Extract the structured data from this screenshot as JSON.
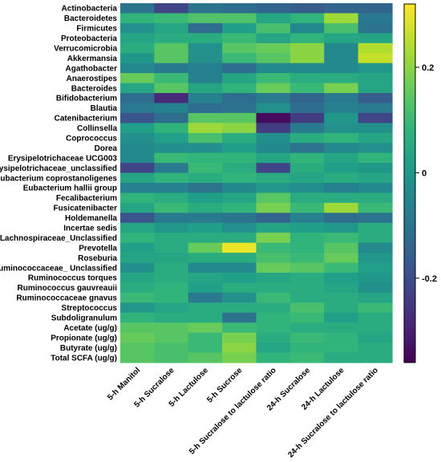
{
  "chart_data": {
    "type": "heatmap",
    "title": "",
    "xlabel": "",
    "ylabel": "",
    "columns": [
      "5-h Manitol",
      "5-h Sucralose",
      "5-h Lactulose",
      "5-h Sucrose",
      "5-h Sucralose to lactulose ratio",
      "24-h Sucralose",
      "24-h Lactulose",
      "24-h Sucralose to lactulose ratio"
    ],
    "rows": [
      "Actinobacteria",
      "Bacteroidetes",
      "Firmicutes",
      "Proteobacteria",
      "Verrucomicrobia",
      "Akkermansia",
      "Agathobacter",
      "Anaerostipes",
      "Bacteroides",
      "Bifidobacterium",
      "Blautia",
      "Catenibacterium",
      "Collinsella",
      "Coprococcus",
      "Dorea",
      "Erysipelotrichaceae UCG003",
      "Erysipelotrichaceae_unclassified",
      "Eubacterium coprostanoligenes",
      "Eubacterium hallii group",
      "Fecalibacterium",
      "Fusicatenibacter",
      "Holdemanella",
      "Incertae sedis",
      "Lachnospiraceae_Unclassified",
      "Prevotella",
      "Roseburia",
      "Ruminococcaceae_ Unclassified",
      "Ruminococcus torques",
      "Ruminococcus gauvreauii",
      "Ruminococcaceae gnavus",
      "Streptococcus",
      "Subdoligranulum",
      "Acetate (ug/g)",
      "Propionate (ug/g)",
      "Butyrate (ug/g)",
      "Total SCFA (ug/g)"
    ],
    "values": [
      [
        -0.1,
        -0.22,
        -0.1,
        -0.12,
        -0.14,
        -0.16,
        -0.14,
        -0.14
      ],
      [
        0.08,
        0.1,
        0.13,
        0.13,
        0.04,
        0.08,
        0.22,
        -0.08
      ],
      [
        -0.02,
        0.04,
        -0.12,
        0.02,
        0.12,
        -0.04,
        0.12,
        -0.1
      ],
      [
        0.04,
        0.06,
        0.06,
        0.1,
        0.04,
        0.08,
        0.04,
        0.04
      ],
      [
        0.06,
        0.14,
        -0.02,
        0.14,
        0.16,
        0.2,
        -0.04,
        0.24
      ],
      [
        0.0,
        0.14,
        -0.02,
        0.1,
        0.14,
        0.2,
        -0.04,
        0.26
      ],
      [
        -0.04,
        -0.08,
        -0.06,
        -0.12,
        -0.04,
        -0.04,
        -0.04,
        0.0
      ],
      [
        0.16,
        0.1,
        -0.06,
        0.04,
        0.1,
        0.06,
        0.06,
        0.04
      ],
      [
        0.04,
        0.14,
        0.04,
        0.08,
        0.16,
        0.1,
        0.18,
        0.04
      ],
      [
        -0.12,
        -0.28,
        -0.06,
        -0.12,
        -0.08,
        -0.14,
        -0.08,
        -0.16
      ],
      [
        -0.08,
        -0.06,
        -0.12,
        -0.1,
        -0.02,
        -0.12,
        -0.06,
        -0.08
      ],
      [
        -0.18,
        -0.12,
        0.14,
        0.14,
        -0.34,
        -0.24,
        0.0,
        -0.22
      ],
      [
        0.02,
        0.08,
        0.22,
        0.2,
        -0.24,
        -0.08,
        -0.02,
        -0.02
      ],
      [
        -0.02,
        0.02,
        0.12,
        0.06,
        -0.02,
        0.06,
        0.08,
        0.04
      ],
      [
        -0.04,
        -0.02,
        -0.02,
        0.02,
        -0.04,
        -0.1,
        -0.04,
        -0.02
      ],
      [
        -0.04,
        0.1,
        0.08,
        0.08,
        0.04,
        0.08,
        0.04,
        0.08
      ],
      [
        -0.22,
        -0.08,
        0.1,
        0.06,
        -0.22,
        0.06,
        0.02,
        0.0
      ],
      [
        0.04,
        0.08,
        0.06,
        0.08,
        0.06,
        0.04,
        0.06,
        0.04
      ],
      [
        -0.06,
        -0.06,
        -0.1,
        -0.04,
        0.0,
        -0.02,
        -0.06,
        -0.04
      ],
      [
        0.08,
        0.06,
        0.02,
        0.04,
        0.14,
        0.06,
        0.06,
        0.06
      ],
      [
        0.04,
        0.1,
        0.06,
        0.08,
        0.18,
        0.1,
        0.22,
        0.1
      ],
      [
        -0.18,
        -0.08,
        -0.08,
        -0.1,
        -0.14,
        -0.06,
        -0.12,
        -0.1
      ],
      [
        0.04,
        0.0,
        0.02,
        -0.02,
        0.04,
        0.02,
        0.0,
        0.06
      ],
      [
        0.08,
        0.06,
        0.06,
        0.06,
        0.18,
        0.08,
        0.1,
        0.06
      ],
      [
        0.02,
        0.06,
        0.16,
        0.3,
        0.1,
        0.08,
        0.14,
        -0.04
      ],
      [
        0.04,
        0.04,
        0.06,
        0.06,
        0.12,
        0.1,
        0.16,
        0.0
      ],
      [
        -0.02,
        0.06,
        -0.04,
        -0.04,
        0.16,
        0.14,
        0.1,
        0.02
      ],
      [
        0.04,
        0.06,
        0.04,
        0.02,
        0.04,
        0.06,
        0.02,
        0.0
      ],
      [
        0.06,
        0.08,
        0.02,
        0.06,
        0.06,
        0.06,
        0.04,
        -0.02
      ],
      [
        0.1,
        0.08,
        -0.08,
        -0.02,
        0.1,
        0.06,
        0.06,
        0.04
      ],
      [
        0.0,
        0.04,
        0.06,
        0.06,
        0.06,
        0.12,
        0.06,
        0.1
      ],
      [
        0.08,
        0.06,
        0.06,
        -0.1,
        0.08,
        0.1,
        0.02,
        0.06
      ],
      [
        0.14,
        0.14,
        0.16,
        0.1,
        0.08,
        0.06,
        0.06,
        0.06
      ],
      [
        0.16,
        0.14,
        0.1,
        0.18,
        0.06,
        0.1,
        0.08,
        0.04
      ],
      [
        0.14,
        0.12,
        0.1,
        0.2,
        0.04,
        0.08,
        0.08,
        0.06
      ],
      [
        0.14,
        0.12,
        0.14,
        0.18,
        0.08,
        0.1,
        0.06,
        0.06
      ]
    ],
    "colormap": "viridis",
    "colorbar_range": [
      -0.36,
      0.32
    ],
    "colorbar_ticks": [
      0.2,
      0,
      -0.2
    ],
    "colorbar_tick_labels": [
      "0.2",
      "0",
      "-0.2"
    ],
    "grid": false,
    "legend": "right colorbar"
  }
}
